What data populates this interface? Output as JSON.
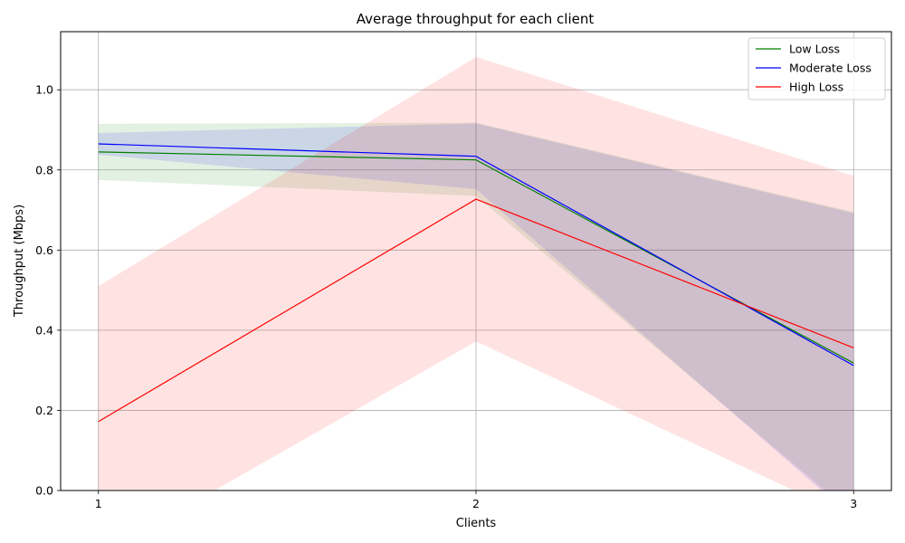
{
  "chart_data": {
    "type": "line",
    "title": "Average throughput for each client",
    "xlabel": "Clients",
    "ylabel": "Throughput (Mbps)",
    "x": [
      1,
      2,
      3
    ],
    "x_tick_labels": [
      "1",
      "2",
      "3"
    ],
    "y_ticks": [
      0.0,
      0.2,
      0.4,
      0.6,
      0.8,
      1.0
    ],
    "y_tick_labels": [
      "0.0",
      "0.2",
      "0.4",
      "0.6",
      "0.8",
      "1.0"
    ],
    "xlim": [
      0.9,
      3.1
    ],
    "ylim": [
      0.0,
      1.145
    ],
    "grid": true,
    "legend_position": "top-right",
    "series": [
      {
        "name": "Low Loss",
        "color": "#008000",
        "band_color": "#008000",
        "values": [
          0.845,
          0.825,
          0.318
        ],
        "lower": [
          0.775,
          0.735,
          -0.06
        ],
        "upper": [
          0.915,
          0.918,
          0.695
        ]
      },
      {
        "name": "Moderate Loss",
        "color": "#0000ff",
        "band_color": "#0000ff",
        "values": [
          0.865,
          0.834,
          0.312
        ],
        "lower": [
          0.838,
          0.752,
          -0.07
        ],
        "upper": [
          0.892,
          0.916,
          0.692
        ]
      },
      {
        "name": "High Loss",
        "color": "#ff0000",
        "band_color": "#ff0000",
        "values": [
          0.172,
          0.727,
          0.356
        ],
        "lower": [
          -0.165,
          0.372,
          -0.07
        ],
        "upper": [
          0.51,
          1.082,
          0.785
        ]
      }
    ]
  }
}
